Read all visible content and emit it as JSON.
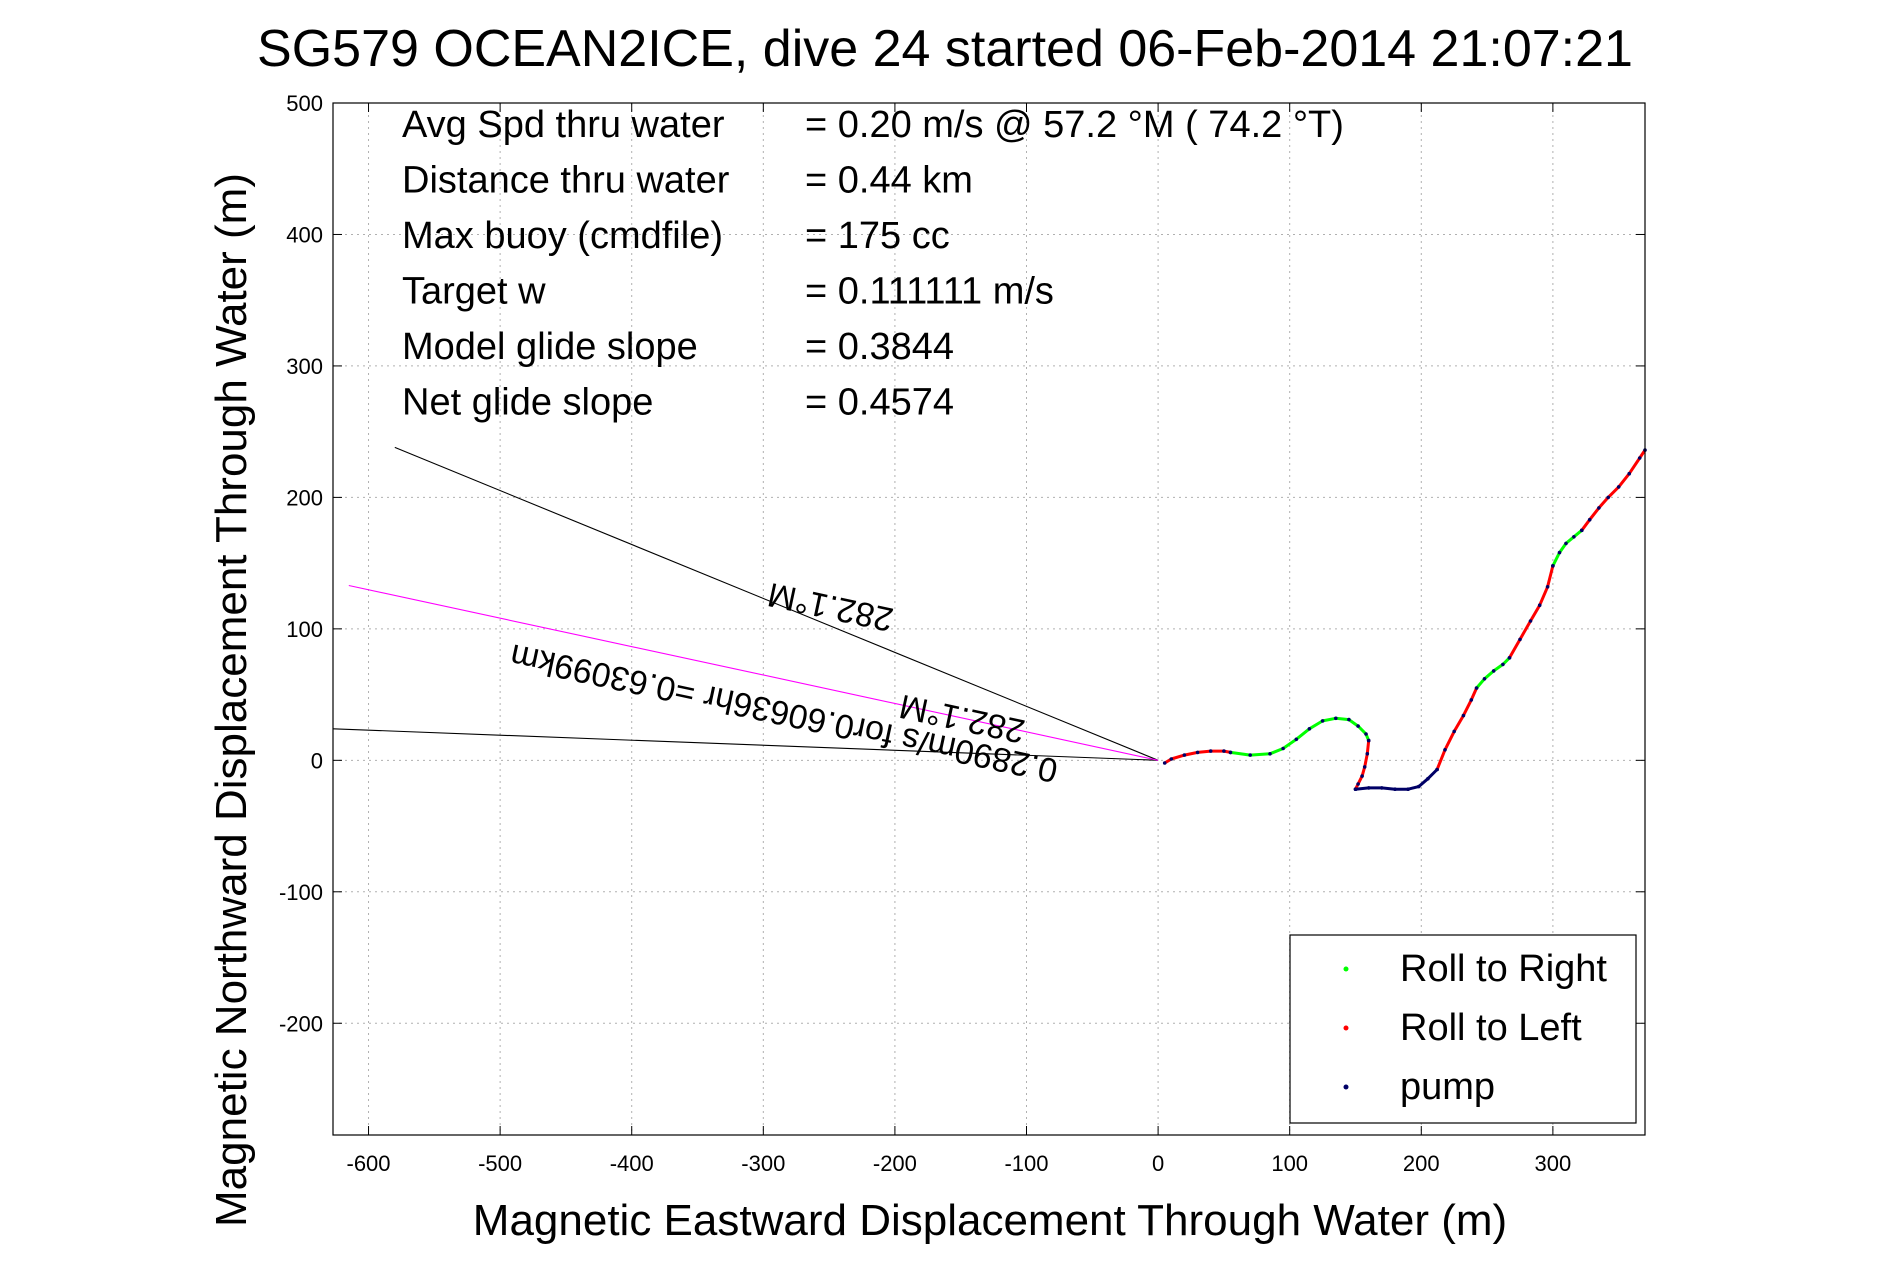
{
  "chart_data": {
    "type": "line",
    "title": "SG579 OCEAN2ICE, dive 24 started 06-Feb-2014 21:07:21",
    "xlabel": "Magnetic Eastward Displacement Through Water (m)",
    "ylabel": "Magnetic Northward Displacement Through Water (m)",
    "xlim": [
      -627,
      370
    ],
    "ylim": [
      -285,
      500
    ],
    "xticks": [
      -600,
      -500,
      -400,
      -300,
      -200,
      -100,
      0,
      100,
      200,
      300
    ],
    "yticks": [
      -200,
      -100,
      0,
      100,
      200,
      300,
      400,
      500
    ],
    "grid": true,
    "legend_position": "bottom-right",
    "stats": [
      {
        "label": "Avg Spd thru water",
        "value": "=  0.20 m/s @  57.2 °M ( 74.2 °T)"
      },
      {
        "label": "Distance thru water",
        "value": "=  0.44 km"
      },
      {
        "label": "Max buoy (cmdfile)",
        "value": "= 175 cc"
      },
      {
        "label": "Target w",
        "value": "= 0.111111 m/s"
      },
      {
        "label": "Model glide slope",
        "value": "= 0.3844"
      },
      {
        "label": "Net glide slope",
        "value": "= 0.4574"
      }
    ],
    "annotations": [
      {
        "text": "0.2890m/s for0.60636hr =0.63099km",
        "x": -75,
        "y": 0,
        "rotation_deg": 192
      },
      {
        "text": "282.1°M",
        "x": -100,
        "y": 30,
        "rotation_deg": 192
      },
      {
        "text": "282.1°M",
        "x": -200,
        "y": 115,
        "rotation_deg": 192
      }
    ],
    "reference_lines": [
      {
        "name": "",
        "color": "#000000",
        "x": [
          0,
          -580
        ],
        "y": [
          0,
          238
        ]
      },
      {
        "name": "",
        "color": "#000000",
        "x": [
          0,
          -627
        ],
        "y": [
          0,
          24
        ]
      },
      {
        "name": "",
        "color": "#ff00ff",
        "x": [
          0,
          -615
        ],
        "y": [
          0,
          133
        ]
      }
    ],
    "series": [
      {
        "name": "Roll to Left",
        "color": "#ff0000",
        "x": [
          5,
          10,
          20,
          30,
          40,
          50,
          55
        ],
        "y": [
          -2,
          1,
          4,
          6,
          7,
          7,
          6
        ]
      },
      {
        "name": "Roll to Right",
        "color": "#00ff00",
        "x": [
          55,
          70,
          85,
          95,
          105,
          115,
          125,
          135,
          145,
          152,
          158,
          160
        ],
        "y": [
          6,
          4,
          5,
          9,
          16,
          24,
          30,
          32,
          31,
          26,
          20,
          15
        ]
      },
      {
        "name": "Roll to Left",
        "color": "#ff0000",
        "x": [
          160,
          159,
          157,
          155,
          152,
          150
        ],
        "y": [
          15,
          5,
          -5,
          -12,
          -18,
          -22
        ]
      },
      {
        "name": "pump",
        "color": "#000066",
        "x": [
          150,
          160,
          170,
          180,
          190,
          198,
          205,
          212
        ],
        "y": [
          -22,
          -21,
          -21,
          -22,
          -22,
          -20,
          -14,
          -7
        ]
      },
      {
        "name": "Roll to Left",
        "color": "#ff0000",
        "x": [
          212,
          218,
          225,
          232,
          238,
          242
        ],
        "y": [
          -7,
          8,
          22,
          34,
          46,
          55
        ]
      },
      {
        "name": "Roll to Right",
        "color": "#00ff00",
        "x": [
          242,
          248,
          255,
          262,
          267
        ],
        "y": [
          55,
          62,
          68,
          73,
          78
        ]
      },
      {
        "name": "Roll to Left",
        "color": "#ff0000",
        "x": [
          267,
          275,
          283,
          290,
          296,
          300
        ],
        "y": [
          78,
          92,
          106,
          118,
          132,
          148
        ]
      },
      {
        "name": "Roll to Right",
        "color": "#00ff00",
        "x": [
          300,
          305,
          310,
          316,
          322
        ],
        "y": [
          148,
          158,
          165,
          170,
          175
        ]
      },
      {
        "name": "Roll to Left",
        "color": "#ff0000",
        "x": [
          322,
          328,
          335,
          342,
          350,
          358,
          366,
          370
        ],
        "y": [
          175,
          183,
          192,
          200,
          208,
          218,
          230,
          236
        ]
      }
    ],
    "legend": [
      {
        "label": "Roll to Right",
        "color": "#00ff00"
      },
      {
        "label": "Roll to Left",
        "color": "#ff0000"
      },
      {
        "label": "pump",
        "color": "#000066"
      }
    ]
  }
}
